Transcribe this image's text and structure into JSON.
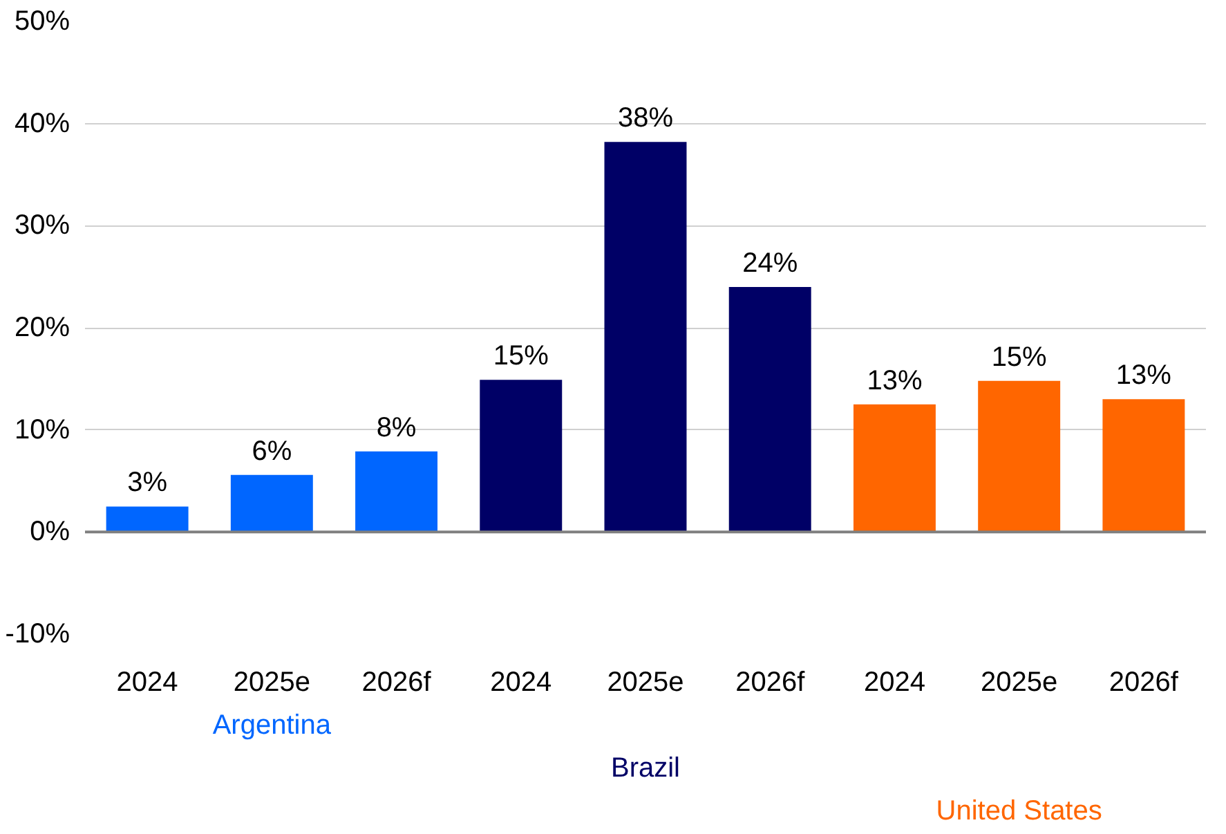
{
  "chart_data": {
    "type": "bar",
    "categories": [
      "2024",
      "2025e",
      "2026f",
      "2024",
      "2025e",
      "2026f",
      "2024",
      "2025e",
      "2026f"
    ],
    "series": [
      {
        "name": "Argentina",
        "color": "#0066ff",
        "values": [
          2.5,
          5.6,
          7.9,
          null,
          null,
          null,
          null,
          null,
          null
        ],
        "value_labels": [
          "3%",
          "6%",
          "8%",
          null,
          null,
          null,
          null,
          null,
          null
        ]
      },
      {
        "name": "Brazil",
        "color": "#000066",
        "values": [
          null,
          null,
          null,
          14.9,
          38.2,
          24.0,
          null,
          null,
          null
        ],
        "value_labels": [
          null,
          null,
          null,
          "15%",
          "38%",
          "24%",
          null,
          null,
          null
        ]
      },
      {
        "name": "United States",
        "color": "#ff6600",
        "values": [
          null,
          null,
          null,
          null,
          null,
          null,
          12.5,
          14.8,
          13.0
        ],
        "value_labels": [
          null,
          null,
          null,
          null,
          null,
          null,
          "13%",
          "15%",
          "13%"
        ]
      }
    ],
    "ylim": [
      -10,
      50
    ],
    "yticks": [
      {
        "value": -10,
        "label": "-10%"
      },
      {
        "value": 0,
        "label": "0%"
      },
      {
        "value": 10,
        "label": "10%"
      },
      {
        "value": 20,
        "label": "20%"
      },
      {
        "value": 30,
        "label": "30%"
      },
      {
        "value": 40,
        "label": "40%"
      },
      {
        "value": 50,
        "label": "50%"
      }
    ],
    "ref_lines": [
      {
        "axis": "y",
        "value": 0,
        "color": "#808080"
      }
    ],
    "grid": "y"
  }
}
